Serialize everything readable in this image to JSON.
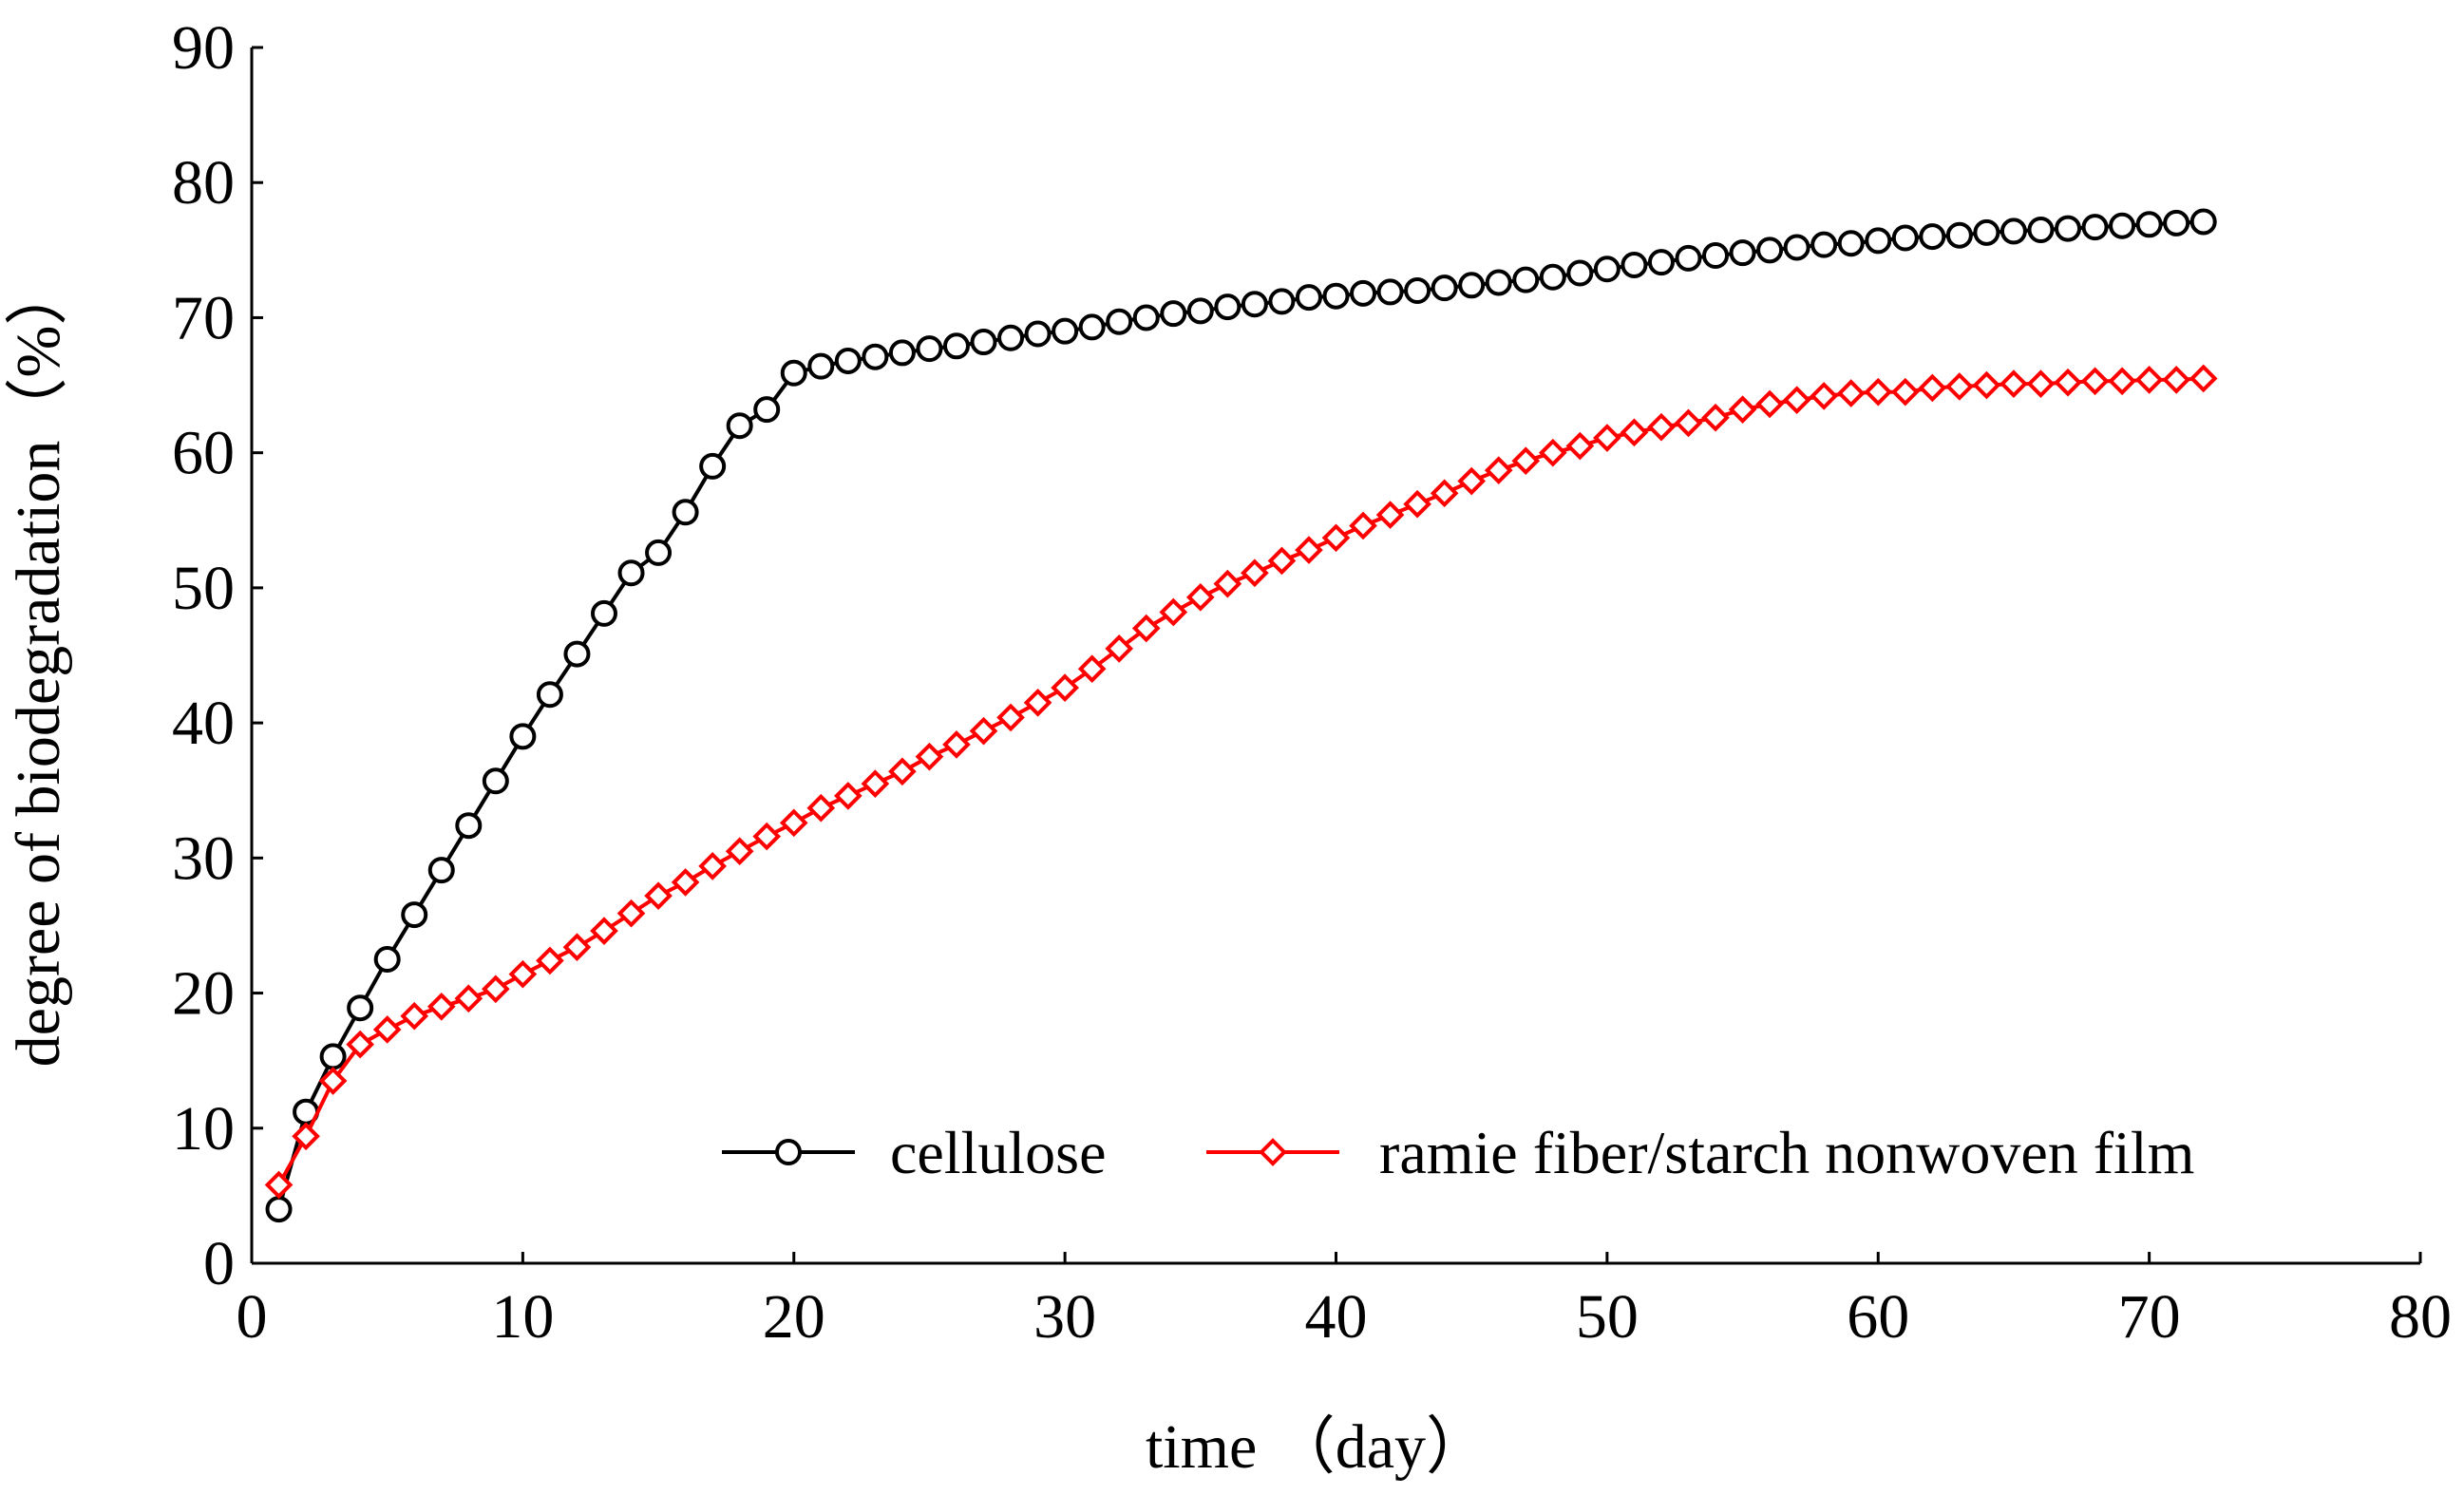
{
  "chart_data": {
    "type": "line",
    "title": "",
    "xlabel": "time （day）",
    "ylabel": "degree of biodegradation（%）",
    "xlim": [
      0,
      80
    ],
    "ylim": [
      0,
      90
    ],
    "xticks": [
      0,
      10,
      20,
      30,
      40,
      50,
      60,
      70,
      80
    ],
    "yticks": [
      0,
      10,
      20,
      30,
      40,
      50,
      60,
      70,
      80,
      90
    ],
    "xtick_labels": [
      "0",
      "10",
      "20",
      "30",
      "40",
      "50",
      "60",
      "70",
      "80"
    ],
    "ytick_labels": [
      "0",
      "10",
      "20",
      "30",
      "40",
      "50",
      "60",
      "70",
      "80",
      "90"
    ],
    "grid": false,
    "legend_position": "bottom-right",
    "series": [
      {
        "name": "cellulose",
        "color": "#000000",
        "marker": "circle",
        "x": [
          1,
          2,
          3,
          4,
          5,
          6,
          7,
          8,
          9,
          10,
          11,
          12,
          13,
          14,
          15,
          16,
          17,
          18,
          19,
          20,
          21,
          22,
          23,
          24,
          25,
          26,
          27,
          28,
          29,
          30,
          31,
          32,
          33,
          34,
          35,
          36,
          37,
          38,
          39,
          40,
          41,
          42,
          43,
          44,
          45,
          46,
          47,
          48,
          49,
          50,
          51,
          52,
          53,
          54,
          55,
          56,
          57,
          58,
          59,
          60,
          61,
          62,
          63,
          64,
          65,
          66,
          67,
          68,
          69,
          70,
          71,
          72
        ],
        "values": [
          4.0,
          11.2,
          15.3,
          18.9,
          22.5,
          25.8,
          29.1,
          32.4,
          35.7,
          39.0,
          42.1,
          45.1,
          48.1,
          51.1,
          52.6,
          55.6,
          59.0,
          62.0,
          63.2,
          65.9,
          66.4,
          66.8,
          67.1,
          67.4,
          67.7,
          67.9,
          68.2,
          68.5,
          68.8,
          69.0,
          69.3,
          69.7,
          70.0,
          70.3,
          70.5,
          70.8,
          71.0,
          71.2,
          71.5,
          71.6,
          71.8,
          71.9,
          72.0,
          72.2,
          72.4,
          72.6,
          72.8,
          73.0,
          73.3,
          73.6,
          73.9,
          74.1,
          74.4,
          74.6,
          74.8,
          75.0,
          75.2,
          75.4,
          75.5,
          75.7,
          75.9,
          76.0,
          76.1,
          76.3,
          76.4,
          76.5,
          76.6,
          76.7,
          76.8,
          76.9,
          77.0,
          77.1
        ]
      },
      {
        "name": "ramie fiber/starch nonwoven film",
        "color": "#ff0000",
        "marker": "diamond",
        "x": [
          1,
          2,
          3,
          4,
          5,
          6,
          7,
          8,
          9,
          10,
          11,
          12,
          13,
          14,
          15,
          16,
          17,
          18,
          19,
          20,
          21,
          22,
          23,
          24,
          25,
          26,
          27,
          28,
          29,
          30,
          31,
          32,
          33,
          34,
          35,
          36,
          37,
          38,
          39,
          40,
          41,
          42,
          43,
          44,
          45,
          46,
          47,
          48,
          49,
          50,
          51,
          52,
          53,
          54,
          55,
          56,
          57,
          58,
          59,
          60,
          61,
          62,
          63,
          64,
          65,
          66,
          67,
          68,
          69,
          70,
          71,
          72
        ],
        "values": [
          5.8,
          9.4,
          13.5,
          16.2,
          17.3,
          18.3,
          19.0,
          19.6,
          20.3,
          21.4,
          22.4,
          23.4,
          24.6,
          25.9,
          27.2,
          28.2,
          29.4,
          30.5,
          31.6,
          32.6,
          33.7,
          34.6,
          35.5,
          36.4,
          37.5,
          38.4,
          39.4,
          40.4,
          41.5,
          42.6,
          44.0,
          45.5,
          47.0,
          48.2,
          49.3,
          50.3,
          51.1,
          52.0,
          52.8,
          53.7,
          54.6,
          55.4,
          56.2,
          57.0,
          57.9,
          58.7,
          59.4,
          60.0,
          60.5,
          61.1,
          61.5,
          61.9,
          62.2,
          62.6,
          63.2,
          63.6,
          63.9,
          64.2,
          64.4,
          64.5,
          64.5,
          64.8,
          64.9,
          65.0,
          65.1,
          65.1,
          65.2,
          65.3,
          65.3,
          65.4,
          65.4,
          65.5
        ]
      }
    ]
  }
}
